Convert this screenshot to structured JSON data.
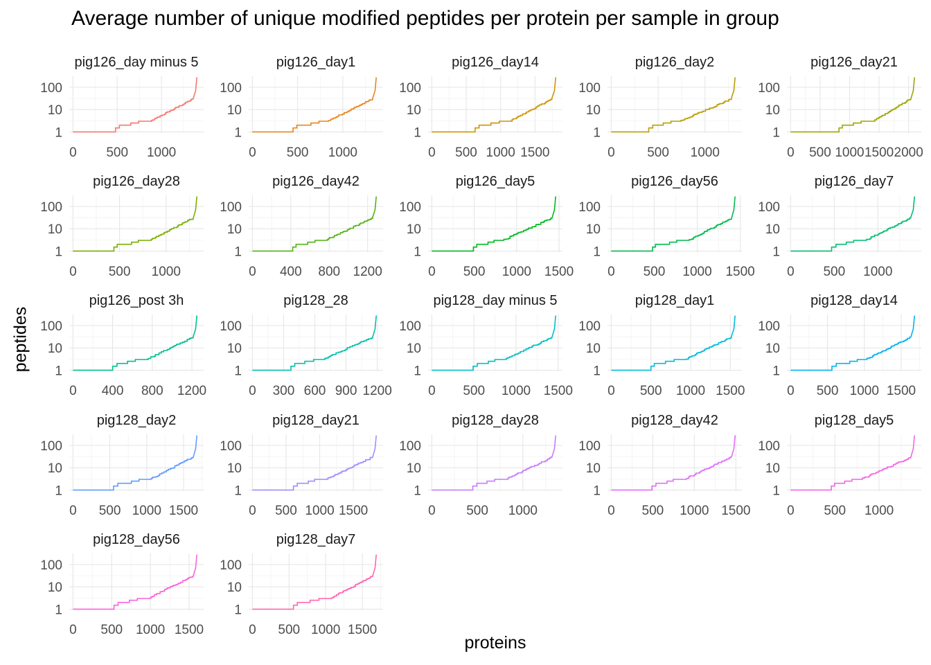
{
  "title": "Average number of unique modified peptides per protein per sample in group",
  "xlabel": "proteins",
  "ylabel": "peptides",
  "chart_data": {
    "type": "line",
    "title": "Average number of unique modified peptides per protein per sample in group",
    "xlabel": "proteins",
    "ylabel": "peptides",
    "y_scale": "log10",
    "y_ticks": [
      1,
      10,
      100
    ],
    "ylim": [
      1,
      280
    ],
    "grid": true,
    "legend": "none",
    "facets": [
      {
        "name": "pig126_day minus 5",
        "color": "#F8766D",
        "n": 1400,
        "flat": 480,
        "xticks": [
          0,
          500,
          1000
        ]
      },
      {
        "name": "pig126_day1",
        "color": "#E7861B",
        "n": 1370,
        "flat": 450,
        "xticks": [
          0,
          500,
          1000
        ]
      },
      {
        "name": "pig126_day14",
        "color": "#D09400",
        "n": 1800,
        "flat": 630,
        "xticks": [
          0,
          500,
          1000,
          1500
        ]
      },
      {
        "name": "pig126_day2",
        "color": "#B79F00",
        "n": 1320,
        "flat": 400,
        "xticks": [
          0,
          500,
          1000
        ]
      },
      {
        "name": "pig126_day21",
        "color": "#9CA700",
        "n": 2100,
        "flat": 820,
        "xticks": [
          0,
          500,
          1000,
          1500,
          2000
        ]
      },
      {
        "name": "pig126_day28",
        "color": "#7CAE00",
        "n": 1330,
        "flat": 440,
        "xticks": [
          0,
          500,
          1000
        ]
      },
      {
        "name": "pig126_day42",
        "color": "#52B415",
        "n": 1290,
        "flat": 420,
        "xticks": [
          0,
          400,
          800,
          1200
        ]
      },
      {
        "name": "pig126_day5",
        "color": "#00B81F",
        "n": 1460,
        "flat": 490,
        "xticks": [
          0,
          500,
          1000,
          1500
        ]
      },
      {
        "name": "pig126_day56",
        "color": "#00BB4E",
        "n": 1440,
        "flat": 480,
        "xticks": [
          0,
          500,
          1000,
          1500
        ]
      },
      {
        "name": "pig126_day7",
        "color": "#00BE70",
        "n": 1420,
        "flat": 470,
        "xticks": [
          0,
          500,
          1000
        ]
      },
      {
        "name": "pig126_post 3h",
        "color": "#00BF8F",
        "n": 1250,
        "flat": 400,
        "xticks": [
          0,
          400,
          800,
          1200
        ]
      },
      {
        "name": "pig128_28",
        "color": "#00C0AA",
        "n": 1190,
        "flat": 370,
        "xticks": [
          0,
          300,
          600,
          900,
          1200
        ]
      },
      {
        "name": "pig128_day minus 5",
        "color": "#00BFC4",
        "n": 1470,
        "flat": 490,
        "xticks": [
          0,
          500,
          1000,
          1500
        ]
      },
      {
        "name": "pig128_day1",
        "color": "#00BCD8",
        "n": 1560,
        "flat": 500,
        "xticks": [
          0,
          500,
          1000,
          1500
        ]
      },
      {
        "name": "pig128_day14",
        "color": "#00B4EF",
        "n": 1680,
        "flat": 560,
        "xticks": [
          0,
          500,
          1000,
          1500
        ]
      },
      {
        "name": "pig128_day2",
        "color": "#619CFF",
        "n": 1680,
        "flat": 550,
        "xticks": [
          0,
          500,
          1000,
          1500
        ]
      },
      {
        "name": "pig128_day21",
        "color": "#9F8CFF",
        "n": 1840,
        "flat": 610,
        "xticks": [
          0,
          500,
          1000,
          1500
        ]
      },
      {
        "name": "pig128_day28",
        "color": "#C77CFF",
        "n": 1360,
        "flat": 450,
        "xticks": [
          0,
          500,
          1000
        ]
      },
      {
        "name": "pig128_day42",
        "color": "#DF70F8",
        "n": 1490,
        "flat": 490,
        "xticks": [
          0,
          500,
          1000,
          1500
        ]
      },
      {
        "name": "pig128_day5",
        "color": "#F067E3",
        "n": 1400,
        "flat": 460,
        "xticks": [
          0,
          500,
          1000
        ]
      },
      {
        "name": "pig128_day56",
        "color": "#FA62DB",
        "n": 1600,
        "flat": 530,
        "xticks": [
          0,
          500,
          1000,
          1500
        ]
      },
      {
        "name": "pig128_day7",
        "color": "#FF65AE",
        "n": 1690,
        "flat": 560,
        "xticks": [
          0,
          500,
          1000,
          1500
        ]
      }
    ]
  }
}
